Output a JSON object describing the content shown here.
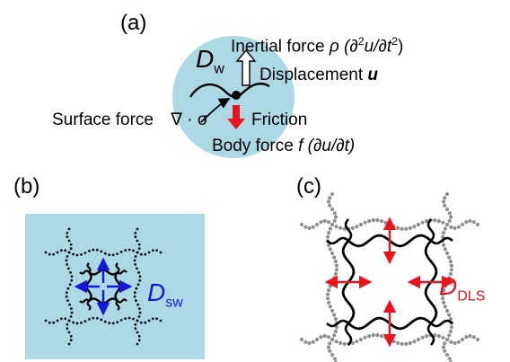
{
  "panels": {
    "a": "(a)",
    "b": "(b)",
    "c": "(c)"
  },
  "panel_a": {
    "inertial_force": {
      "text": "Inertial force ",
      "rho": "ρ",
      "expr_open": " (∂",
      "sup2": "2",
      "u_over": "u/∂t",
      "expr_close": ")"
    },
    "dw": {
      "d": "D",
      "sub": "w"
    },
    "displacement": {
      "text": "Displacement ",
      "var": "u"
    },
    "surface_force": {
      "text": "Surface force ",
      "expr": "∇ · σ"
    },
    "friction": "Friction",
    "body_force": {
      "text": "Body force ",
      "var": "f",
      "expr": " (∂u/∂t)"
    }
  },
  "panel_b": {
    "d": "D",
    "sub": "sw"
  },
  "panel_c": {
    "d": "D",
    "sub": "DLS"
  },
  "colors": {
    "circle_fill": "#add8e6",
    "square_fill": "#add8e6",
    "blue_accent": "#1515e0",
    "red_accent": "#e8141e",
    "dots": "#111111",
    "grey_dots": "#8f8f8f"
  },
  "icons": [
    "outline-up-arrow-icon",
    "red-down-arrow-icon",
    "curve-arrow-icon"
  ]
}
